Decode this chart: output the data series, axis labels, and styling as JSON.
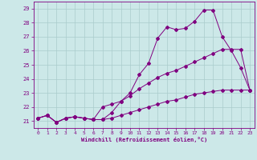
{
  "xlabel": "Windchill (Refroidissement éolien,°C)",
  "bg_color": "#cce8e8",
  "line_color": "#800080",
  "grid_color": "#aacccc",
  "xlim": [
    -0.5,
    23.5
  ],
  "ylim": [
    20.5,
    29.5
  ],
  "yticks": [
    21,
    22,
    23,
    24,
    25,
    26,
    27,
    28,
    29
  ],
  "xticks": [
    0,
    1,
    2,
    3,
    4,
    5,
    6,
    7,
    8,
    9,
    10,
    11,
    12,
    13,
    14,
    15,
    16,
    17,
    18,
    19,
    20,
    21,
    22,
    23
  ],
  "line1_x": [
    0,
    1,
    2,
    3,
    4,
    5,
    6,
    7,
    8,
    9,
    10,
    11,
    12,
    13,
    14,
    15,
    16,
    17,
    18,
    19,
    20,
    21,
    22,
    23
  ],
  "line1_y": [
    21.2,
    21.4,
    20.9,
    21.2,
    21.3,
    21.2,
    21.1,
    21.1,
    21.6,
    22.4,
    23.0,
    24.3,
    25.1,
    26.9,
    27.7,
    27.5,
    27.6,
    28.1,
    28.9,
    28.9,
    27.0,
    26.0,
    24.8,
    23.2
  ],
  "line2_x": [
    0,
    1,
    2,
    3,
    4,
    5,
    6,
    7,
    8,
    9,
    10,
    11,
    12,
    13,
    14,
    15,
    16,
    17,
    18,
    19,
    20,
    21,
    22,
    23
  ],
  "line2_y": [
    21.2,
    21.4,
    20.9,
    21.2,
    21.3,
    21.2,
    21.1,
    22.0,
    22.2,
    22.4,
    22.8,
    23.3,
    23.7,
    24.1,
    24.4,
    24.6,
    24.9,
    25.2,
    25.5,
    25.8,
    26.1,
    26.1,
    26.1,
    23.2
  ],
  "line3_x": [
    0,
    1,
    2,
    3,
    4,
    5,
    6,
    7,
    8,
    9,
    10,
    11,
    12,
    13,
    14,
    15,
    16,
    17,
    18,
    19,
    20,
    21,
    22,
    23
  ],
  "line3_y": [
    21.2,
    21.4,
    20.9,
    21.2,
    21.3,
    21.2,
    21.1,
    21.1,
    21.2,
    21.4,
    21.6,
    21.8,
    22.0,
    22.2,
    22.4,
    22.5,
    22.7,
    22.9,
    23.0,
    23.1,
    23.2,
    23.2,
    23.2,
    23.2
  ]
}
